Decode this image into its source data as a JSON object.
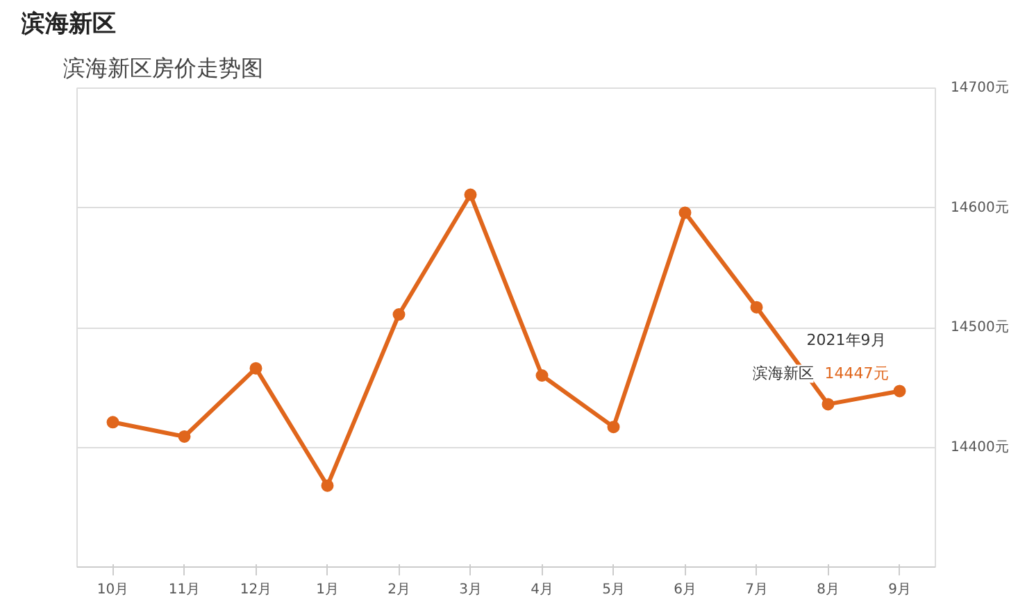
{
  "chart_data": {
    "type": "line",
    "title": "滨海新区",
    "subtitle": "滨海新区房价走势图",
    "categories": [
      "10月",
      "11月",
      "12月",
      "1月",
      "2月",
      "3月",
      "4月",
      "5月",
      "6月",
      "7月",
      "8月",
      "9月"
    ],
    "series": [
      {
        "name": "滨海新区",
        "color": "#e0661c",
        "values": [
          14421,
          14409,
          14466,
          14368,
          14511,
          14611,
          14460,
          14417,
          14596,
          14517,
          14436,
          14447
        ],
        "value_labels": [
          null,
          null,
          null,
          null,
          null,
          null,
          null,
          null,
          null,
          null,
          null,
          "14447元"
        ]
      }
    ],
    "annotations": [
      {
        "text": "2021年9月",
        "x": "9月",
        "y": 14447
      }
    ],
    "ylim": [
      14300,
      14700
    ],
    "yticks": [
      {
        "value": 14400,
        "label": "14400元"
      },
      {
        "value": 14500,
        "label": "14500元"
      },
      {
        "value": 14600,
        "label": "14600元"
      },
      {
        "value": 14700,
        "label": "14700元"
      }
    ],
    "grid": "y",
    "marker": "circle",
    "line_style": "solid",
    "legend": false
  }
}
